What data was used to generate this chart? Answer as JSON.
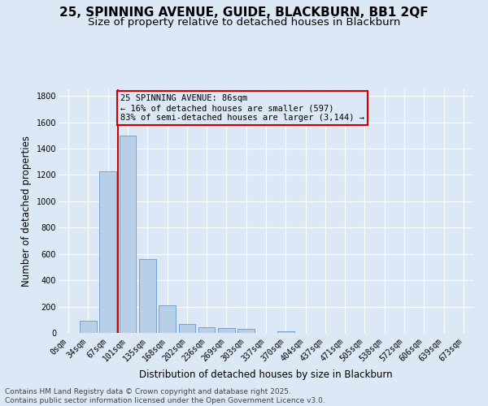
{
  "title": "25, SPINNING AVENUE, GUIDE, BLACKBURN, BB1 2QF",
  "subtitle": "Size of property relative to detached houses in Blackburn",
  "xlabel": "Distribution of detached houses by size in Blackburn",
  "ylabel": "Number of detached properties",
  "categories": [
    "0sqm",
    "34sqm",
    "67sqm",
    "101sqm",
    "135sqm",
    "168sqm",
    "202sqm",
    "236sqm",
    "269sqm",
    "303sqm",
    "337sqm",
    "370sqm",
    "404sqm",
    "437sqm",
    "471sqm",
    "505sqm",
    "538sqm",
    "572sqm",
    "606sqm",
    "639sqm",
    "673sqm"
  ],
  "values": [
    0,
    90,
    1230,
    1500,
    560,
    210,
    65,
    45,
    35,
    30,
    0,
    15,
    0,
    0,
    0,
    0,
    0,
    0,
    0,
    0,
    0
  ],
  "bar_color": "#b8cfe8",
  "bar_edge_color": "#6699cc",
  "bg_color": "#dce8f5",
  "grid_color": "#ffffff",
  "vline_x": 2.5,
  "vline_color": "#cc0000",
  "annotation_line1": "25 SPINNING AVENUE: 86sqm",
  "annotation_line2": "← 16% of detached houses are smaller (597)",
  "annotation_line3": "83% of semi-detached houses are larger (3,144) →",
  "annotation_box_color": "#cc0000",
  "ylim": [
    0,
    1850
  ],
  "yticks": [
    0,
    200,
    400,
    600,
    800,
    1000,
    1200,
    1400,
    1600,
    1800
  ],
  "footer_line1": "Contains HM Land Registry data © Crown copyright and database right 2025.",
  "footer_line2": "Contains public sector information licensed under the Open Government Licence v3.0.",
  "title_fontsize": 11,
  "subtitle_fontsize": 9.5,
  "tick_fontsize": 7,
  "ylabel_fontsize": 8.5,
  "xlabel_fontsize": 8.5,
  "annotation_fontsize": 7.5,
  "footer_fontsize": 6.5
}
